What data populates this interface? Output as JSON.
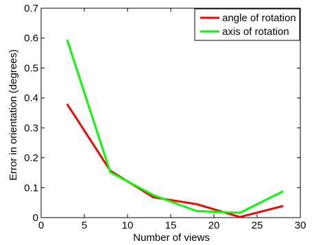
{
  "chart_data": {
    "type": "line",
    "xlabel": "Number of views",
    "ylabel": "Error in orientation (degrees)",
    "xlim": [
      0,
      30
    ],
    "ylim": [
      0,
      0.7
    ],
    "xticks": [
      0,
      5,
      10,
      15,
      20,
      25,
      30
    ],
    "yticks": [
      0,
      0.1,
      0.2,
      0.3,
      0.4,
      0.5,
      0.6,
      0.7
    ],
    "xtick_labels": [
      "0",
      "5",
      "10",
      "15",
      "20",
      "25",
      "30"
    ],
    "ytick_labels": [
      "0",
      "0.1",
      "0.2",
      "0.3",
      "0.4",
      "0.5",
      "0.6",
      "0.7"
    ],
    "grid": false,
    "legend_position": "top-right",
    "series": [
      {
        "name": "angle of rotation",
        "color": "#ff0000",
        "x": [
          3,
          8,
          13,
          18,
          23,
          28
        ],
        "y": [
          0.38,
          0.157,
          0.068,
          0.045,
          0.002,
          0.039
        ]
      },
      {
        "name": "axis of rotation",
        "color": "#00ff00",
        "x": [
          3,
          8,
          13,
          18,
          23,
          28
        ],
        "y": [
          0.595,
          0.152,
          0.075,
          0.022,
          0.016,
          0.088
        ]
      }
    ]
  }
}
